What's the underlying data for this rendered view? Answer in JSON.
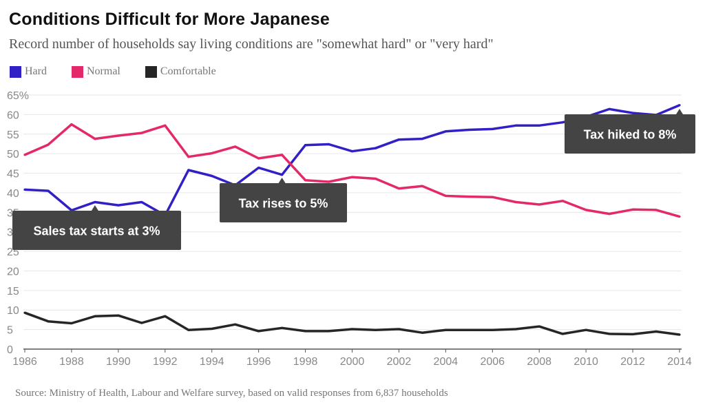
{
  "title": "Conditions Difficult for More Japanese",
  "subtitle": "Record number of households say living conditions are \"somewhat hard\" or \"very hard\"",
  "source": "Source: Ministry of Health, Labour and Welfare survey, based on valid responses from 6,837 households",
  "chart_data": {
    "type": "line",
    "title": "Conditions Difficult for More Japanese",
    "xlabel": "",
    "ylabel": "",
    "x": [
      1986,
      1987,
      1988,
      1989,
      1990,
      1991,
      1992,
      1993,
      1994,
      1995,
      1996,
      1997,
      1998,
      1999,
      2000,
      2001,
      2002,
      2003,
      2004,
      2005,
      2006,
      2007,
      2008,
      2009,
      2010,
      2011,
      2012,
      2013,
      2014
    ],
    "xlim": [
      1986,
      2014
    ],
    "ylim": [
      0,
      65
    ],
    "grid": true,
    "legend_position": "top-left",
    "x_ticks": [
      "1986",
      "1988",
      "1990",
      "1992",
      "1994",
      "1996",
      "1998",
      "2000",
      "2002",
      "2004",
      "2006",
      "2008",
      "2010",
      "2012",
      "2014"
    ],
    "y_ticks": [
      "0",
      "5",
      "10",
      "15",
      "20",
      "25",
      "30",
      "35",
      "40",
      "45",
      "50",
      "55",
      "60",
      "65%"
    ],
    "series": [
      {
        "name": "Hard",
        "color": "#3120c6",
        "values": [
          40.8,
          40.5,
          35.5,
          37.6,
          36.8,
          37.6,
          34.2,
          45.8,
          44.3,
          41.9,
          46.4,
          44.6,
          52.2,
          52.4,
          50.6,
          51.4,
          53.6,
          53.8,
          55.7,
          56.1,
          56.3,
          57.2,
          57.2,
          58.0,
          59.4,
          61.4,
          60.4,
          59.9,
          62.4
        ]
      },
      {
        "name": "Normal",
        "color": "#e4296a",
        "values": [
          49.7,
          52.3,
          57.5,
          53.8,
          54.6,
          55.3,
          57.2,
          49.2,
          50.1,
          51.8,
          48.8,
          49.7,
          43.2,
          42.8,
          44.0,
          43.6,
          41.1,
          41.7,
          39.2,
          39.0,
          38.9,
          37.6,
          37.0,
          37.9,
          35.6,
          34.6,
          35.7,
          35.6,
          33.9
        ]
      },
      {
        "name": "Comfortable",
        "color": "#262626",
        "values": [
          9.3,
          7.1,
          6.6,
          8.4,
          8.6,
          6.7,
          8.4,
          4.9,
          5.2,
          6.3,
          4.6,
          5.4,
          4.6,
          4.6,
          5.1,
          4.9,
          5.1,
          4.2,
          4.9,
          4.9,
          4.9,
          5.1,
          5.8,
          3.9,
          4.9,
          3.9,
          3.8,
          4.5,
          3.7
        ]
      }
    ],
    "annotations": [
      {
        "text": "Sales tax starts at 3%",
        "x": 1989
      },
      {
        "text": "Tax rises to 5%",
        "x": 1997
      },
      {
        "text": "Tax hiked to 8%",
        "x": 2014
      }
    ]
  }
}
